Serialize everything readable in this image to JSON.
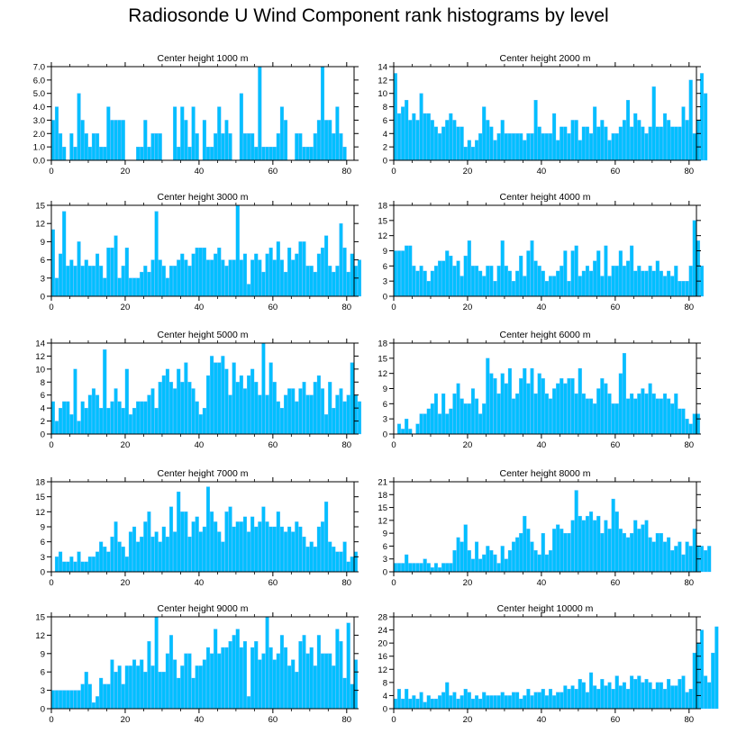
{
  "figure": {
    "title": "Radiosonde U Wind Component rank histograms by level",
    "bar_color": "#00bfff",
    "bar_edge_color": "#5ab4ff"
  },
  "chart_data": [
    {
      "type": "bar",
      "title": "Center height 1000 m",
      "xlim": [
        0,
        82
      ],
      "x_ticks": [
        0,
        20,
        40,
        60,
        80
      ],
      "ylim": [
        0,
        7
      ],
      "y_ticks": [
        0,
        1,
        2,
        3,
        4,
        5,
        6,
        7
      ],
      "y_tick_labels": [
        "0.0",
        "1.0",
        "2.0",
        "3.0",
        "4.0",
        "5.0",
        "6.0",
        "7.0"
      ],
      "values": [
        3,
        4,
        2,
        1,
        0,
        2,
        1,
        5,
        3,
        2,
        1,
        2,
        2,
        1,
        1,
        4,
        3,
        3,
        3,
        3,
        0,
        0,
        0,
        1,
        1,
        3,
        1,
        2,
        2,
        2,
        0,
        0,
        0,
        4,
        1,
        4,
        3,
        1,
        4,
        2,
        0,
        3,
        1,
        1,
        2,
        4,
        2,
        3,
        2,
        0,
        0,
        5,
        2,
        2,
        2,
        1,
        7,
        1,
        1,
        1,
        1,
        2,
        4,
        3,
        0,
        0,
        2,
        2,
        1,
        1,
        1,
        2,
        3,
        7,
        3,
        3,
        2,
        4,
        2,
        1
      ]
    },
    {
      "type": "bar",
      "title": "Center height 2000 m",
      "xlim": [
        0,
        82
      ],
      "x_ticks": [
        0,
        20,
        40,
        60,
        80
      ],
      "ylim": [
        0,
        14
      ],
      "y_ticks": [
        0,
        2,
        4,
        6,
        8,
        10,
        12,
        14
      ],
      "y_tick_labels": [
        "0",
        "2",
        "4",
        "6",
        "8",
        "10",
        "12",
        "14"
      ],
      "values": [
        13,
        7,
        8,
        9,
        6,
        7,
        6,
        10,
        7,
        7,
        6,
        5,
        4,
        5,
        6,
        7,
        6,
        5,
        5,
        2,
        3,
        2,
        3,
        4,
        8,
        6,
        5,
        3,
        4,
        6,
        4,
        4,
        4,
        4,
        4,
        3,
        4,
        4,
        9,
        5,
        4,
        4,
        4,
        7,
        3,
        5,
        5,
        4,
        6,
        6,
        3,
        5,
        5,
        4,
        8,
        5,
        6,
        5,
        3,
        4,
        4,
        5,
        6,
        9,
        5,
        7,
        6,
        5,
        4,
        5,
        11,
        5,
        5,
        7,
        6,
        5,
        5,
        5,
        8,
        6,
        12,
        4,
        6,
        13,
        10
      ]
    },
    {
      "type": "bar",
      "title": "Center height 3000 m",
      "xlim": [
        0,
        82
      ],
      "x_ticks": [
        0,
        20,
        40,
        60,
        80
      ],
      "ylim": [
        0,
        15
      ],
      "y_ticks": [
        0,
        3,
        6,
        9,
        12,
        15
      ],
      "y_tick_labels": [
        "0",
        "3",
        "6",
        "9",
        "12",
        "15"
      ],
      "values": [
        11,
        3,
        7,
        14,
        5,
        6,
        5,
        9,
        5,
        6,
        5,
        5,
        7,
        5,
        3,
        8,
        8,
        10,
        3,
        5,
        8,
        3,
        3,
        3,
        4,
        5,
        4,
        6,
        14,
        6,
        5,
        3,
        5,
        5,
        6,
        7,
        6,
        5,
        7,
        8,
        8,
        8,
        6,
        6,
        7,
        8,
        6,
        5,
        6,
        6,
        15,
        6,
        7,
        2,
        6,
        7,
        6,
        4,
        7,
        8,
        6,
        9,
        6,
        4,
        8,
        6,
        7,
        9,
        9,
        5,
        5,
        4,
        7,
        8,
        10,
        5,
        4,
        5,
        12,
        8,
        4,
        7,
        5,
        6
      ]
    },
    {
      "type": "bar",
      "title": "Center height 4000 m",
      "xlim": [
        0,
        82
      ],
      "x_ticks": [
        0,
        20,
        40,
        60,
        80
      ],
      "ylim": [
        0,
        18
      ],
      "y_ticks": [
        0,
        3,
        6,
        9,
        12,
        15,
        18
      ],
      "y_tick_labels": [
        "0",
        "3",
        "6",
        "9",
        "12",
        "15",
        "18"
      ],
      "values": [
        9,
        9,
        9,
        10,
        10,
        6,
        5,
        6,
        5,
        3,
        5,
        6,
        7,
        7,
        9,
        8,
        6,
        7,
        4,
        8,
        11,
        6,
        6,
        5,
        4,
        6,
        6,
        3,
        6,
        11,
        6,
        5,
        3,
        5,
        8,
        4,
        9,
        11,
        7,
        6,
        5,
        3,
        4,
        4,
        5,
        6,
        9,
        3,
        9,
        10,
        4,
        5,
        6,
        5,
        7,
        9,
        4,
        10,
        4,
        6,
        6,
        9,
        6,
        7,
        10,
        5,
        6,
        5,
        5,
        6,
        5,
        7,
        5,
        4,
        5,
        4,
        6,
        3,
        3,
        3,
        6,
        15,
        11,
        6
      ]
    },
    {
      "type": "bar",
      "title": "Center height 5000 m",
      "xlim": [
        0,
        82
      ],
      "x_ticks": [
        0,
        20,
        40,
        60,
        80
      ],
      "ylim": [
        0,
        14
      ],
      "y_ticks": [
        0,
        2,
        4,
        6,
        8,
        10,
        12,
        14
      ],
      "y_tick_labels": [
        "0",
        "2",
        "4",
        "6",
        "8",
        "10",
        "12",
        "14"
      ],
      "values": [
        5,
        2,
        4,
        5,
        5,
        3,
        10,
        2,
        5,
        4,
        6,
        7,
        6,
        4,
        13,
        4,
        5,
        7,
        5,
        4,
        10,
        3,
        4,
        5,
        5,
        5,
        6,
        7,
        4,
        8,
        9,
        10,
        8,
        7,
        10,
        8,
        11,
        8,
        7,
        5,
        3,
        4,
        9,
        12,
        11,
        11,
        12,
        10,
        6,
        11,
        8,
        9,
        7,
        9,
        10,
        8,
        6,
        14,
        6,
        11,
        8,
        5,
        4,
        6,
        7,
        7,
        5,
        7,
        8,
        6,
        6,
        8,
        9,
        7,
        3,
        8,
        4,
        6,
        7,
        5,
        6,
        11,
        6,
        5
      ]
    },
    {
      "type": "bar",
      "title": "Center height 6000 m",
      "xlim": [
        0,
        82
      ],
      "x_ticks": [
        0,
        20,
        40,
        60,
        80
      ],
      "ylim": [
        0,
        18
      ],
      "y_ticks": [
        0,
        3,
        6,
        9,
        12,
        15,
        18
      ],
      "y_tick_labels": [
        "0",
        "3",
        "6",
        "9",
        "12",
        "15",
        "18"
      ],
      "values": [
        0,
        2,
        1,
        3,
        1,
        0,
        2,
        4,
        4,
        5,
        6,
        8,
        4,
        8,
        4,
        5,
        8,
        10,
        7,
        6,
        6,
        9,
        7,
        4,
        6,
        15,
        12,
        11,
        8,
        12,
        10,
        13,
        7,
        8,
        11,
        13,
        10,
        13,
        8,
        12,
        11,
        8,
        7,
        9,
        10,
        11,
        10,
        11,
        11,
        8,
        13,
        8,
        7,
        7,
        6,
        9,
        11,
        10,
        8,
        6,
        6,
        12,
        16,
        7,
        8,
        7,
        8,
        9,
        8,
        10,
        8,
        7,
        7,
        8,
        7,
        6,
        8,
        5,
        5,
        3,
        2,
        4,
        4
      ]
    },
    {
      "type": "bar",
      "title": "Center height 7000 m",
      "xlim": [
        0,
        82
      ],
      "x_ticks": [
        0,
        20,
        40,
        60,
        80
      ],
      "ylim": [
        0,
        18
      ],
      "y_ticks": [
        0,
        3,
        6,
        9,
        12,
        15,
        18
      ],
      "y_tick_labels": [
        "0",
        "3",
        "6",
        "9",
        "12",
        "15",
        "18"
      ],
      "values": [
        0,
        3,
        4,
        2,
        2,
        3,
        2,
        4,
        2,
        2,
        3,
        3,
        4,
        6,
        5,
        4,
        7,
        10,
        6,
        5,
        3,
        8,
        9,
        6,
        7,
        10,
        12,
        7,
        8,
        6,
        9,
        7,
        13,
        8,
        16,
        12,
        12,
        7,
        10,
        11,
        8,
        9,
        17,
        12,
        10,
        8,
        6,
        12,
        13,
        9,
        10,
        10,
        11,
        8,
        11,
        9,
        10,
        13,
        10,
        9,
        9,
        12,
        9,
        8,
        9,
        8,
        10,
        9,
        7,
        5,
        6,
        5,
        9,
        10,
        14,
        6,
        5,
        4,
        4,
        6,
        2,
        3,
        4
      ]
    },
    {
      "type": "bar",
      "title": "Center height 8000 m",
      "xlim": [
        0,
        82
      ],
      "x_ticks": [
        0,
        20,
        40,
        60,
        80
      ],
      "ylim": [
        0,
        21
      ],
      "y_ticks": [
        0,
        3,
        6,
        9,
        12,
        15,
        18,
        21
      ],
      "y_tick_labels": [
        "0",
        "3",
        "6",
        "9",
        "12",
        "15",
        "18",
        "21"
      ],
      "values": [
        2,
        2,
        2,
        4,
        2,
        2,
        2,
        2,
        3,
        2,
        1,
        2,
        1,
        2,
        2,
        2,
        5,
        8,
        7,
        11,
        5,
        3,
        7,
        3,
        4,
        6,
        5,
        4,
        2,
        6,
        3,
        5,
        7,
        8,
        9,
        13,
        10,
        7,
        5,
        4,
        9,
        4,
        5,
        10,
        11,
        10,
        9,
        9,
        12,
        19,
        13,
        12,
        13,
        14,
        12,
        13,
        9,
        12,
        10,
        17,
        14,
        10,
        9,
        8,
        9,
        12,
        10,
        11,
        12,
        8,
        7,
        9,
        9,
        7,
        8,
        5,
        6,
        7,
        4,
        7,
        6,
        10,
        6,
        6,
        5,
        6
      ]
    },
    {
      "type": "bar",
      "title": "Center height 9000 m",
      "xlim": [
        0,
        82
      ],
      "x_ticks": [
        0,
        20,
        40,
        60,
        80
      ],
      "ylim": [
        0,
        15
      ],
      "y_ticks": [
        0,
        3,
        6,
        9,
        12,
        15
      ],
      "y_tick_labels": [
        "0",
        "3",
        "6",
        "9",
        "12",
        "15"
      ],
      "values": [
        3,
        3,
        3,
        3,
        3,
        3,
        3,
        3,
        4,
        6,
        4,
        1,
        2,
        5,
        4,
        4,
        8,
        6,
        7,
        4,
        7,
        7,
        8,
        7,
        8,
        6,
        11,
        7,
        15,
        6,
        6,
        9,
        12,
        8,
        5,
        7,
        9,
        9,
        5,
        7,
        7,
        8,
        10,
        9,
        13,
        9,
        10,
        10,
        11,
        12,
        13,
        10,
        11,
        2,
        10,
        11,
        8,
        9,
        15,
        10,
        8,
        9,
        12,
        10,
        7,
        8,
        6,
        11,
        12,
        9,
        10,
        7,
        12,
        9,
        9,
        9,
        7,
        13,
        11,
        5,
        14,
        4,
        8
      ]
    },
    {
      "type": "bar",
      "title": "Center height 10000 m",
      "xlim": [
        0,
        82
      ],
      "x_ticks": [
        0,
        20,
        40,
        60,
        80
      ],
      "ylim": [
        0,
        28
      ],
      "y_ticks": [
        0,
        4,
        8,
        12,
        16,
        20,
        24,
        28
      ],
      "y_tick_labels": [
        "0",
        "4",
        "8",
        "12",
        "16",
        "20",
        "24",
        "28"
      ],
      "values": [
        3,
        6,
        3,
        6,
        3,
        4,
        3,
        5,
        2,
        4,
        3,
        3,
        4,
        5,
        8,
        4,
        5,
        3,
        4,
        6,
        5,
        3,
        4,
        3,
        5,
        4,
        4,
        4,
        4,
        5,
        4,
        4,
        5,
        5,
        3,
        4,
        6,
        4,
        5,
        5,
        6,
        4,
        6,
        4,
        5,
        5,
        7,
        6,
        7,
        6,
        9,
        8,
        5,
        11,
        7,
        6,
        9,
        7,
        8,
        6,
        10,
        7,
        8,
        6,
        10,
        9,
        10,
        8,
        9,
        8,
        6,
        8,
        8,
        6,
        9,
        7,
        7,
        9,
        10,
        5,
        6,
        17,
        20,
        24,
        10,
        8,
        17,
        25
      ]
    }
  ]
}
